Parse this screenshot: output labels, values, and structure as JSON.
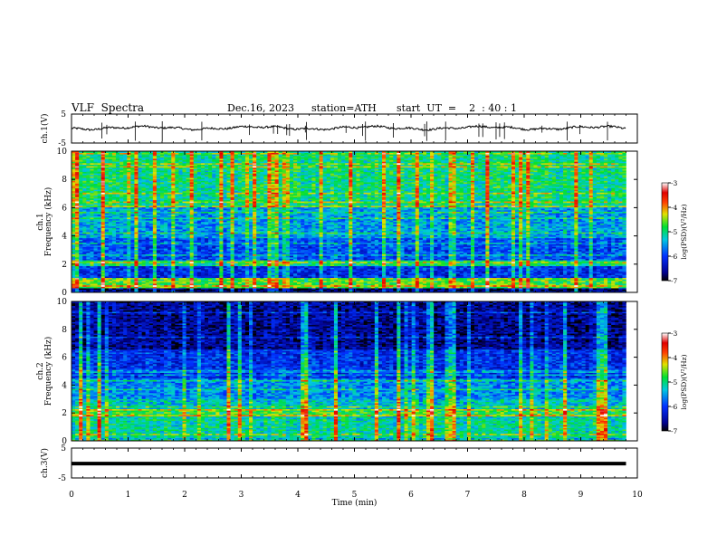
{
  "header": {
    "title": "VLF  Spectra",
    "date": "Dec.16, 2023",
    "station": "station=ATH",
    "start": "start  UT  =    2  : 40 : 1"
  },
  "chart_data": [
    {
      "type": "line",
      "name": "ch1-voltage",
      "ylabel": "ch.1(V)",
      "yticks": [
        "5",
        "-5"
      ],
      "ylim": [
        -5,
        5
      ],
      "xlim": [
        0,
        10
      ],
      "baseline": 0.2,
      "data_end_min": 9.8
    },
    {
      "type": "heatmap",
      "name": "ch1-spectrogram",
      "ylabel": "ch.1\nFrequency  (kHz)",
      "ylim": [
        0,
        10
      ],
      "yticks": [
        "0",
        "2",
        "4",
        "6",
        "8",
        "10"
      ],
      "xlim": [
        0,
        10
      ],
      "data_end_min": 9.8,
      "colorbar": {
        "label": "log(PSD)(V²/Hz)",
        "ticks": [
          "-3",
          "-4",
          "-5",
          "-6",
          "-7"
        ],
        "range": [
          -7,
          -3
        ]
      },
      "bands": [
        {
          "from": 0.0,
          "to": 0.3,
          "level": -6.8
        },
        {
          "from": 0.3,
          "to": 1.0,
          "level": -4.7
        },
        {
          "from": 1.0,
          "to": 1.9,
          "level": -6.1
        },
        {
          "from": 1.9,
          "to": 2.3,
          "level": -5.0
        },
        {
          "from": 2.3,
          "to": 4.0,
          "level": -5.9
        },
        {
          "from": 4.0,
          "to": 6.0,
          "level": -5.5
        },
        {
          "from": 6.0,
          "to": 10.0,
          "level": -5.0
        }
      ]
    },
    {
      "type": "heatmap",
      "name": "ch2-spectrogram",
      "ylabel": "ch.2\nFrequency  (kHz)",
      "ylim": [
        0,
        10
      ],
      "yticks": [
        "0",
        "2",
        "4",
        "6",
        "8",
        "10"
      ],
      "xlim": [
        0,
        10
      ],
      "data_end_min": 9.8,
      "colorbar": {
        "label": "log(PSD)(V²/Hz)",
        "ticks": [
          "-3",
          "-4",
          "-5",
          "-6",
          "-7"
        ],
        "range": [
          -7,
          -3
        ]
      },
      "bands": [
        {
          "from": 0.0,
          "to": 0.2,
          "level": -5.4
        },
        {
          "from": 0.2,
          "to": 1.6,
          "level": -5.1
        },
        {
          "from": 1.6,
          "to": 1.8,
          "level": -5.7
        },
        {
          "from": 1.8,
          "to": 2.3,
          "level": -4.8
        },
        {
          "from": 2.3,
          "to": 3.0,
          "level": -5.3
        },
        {
          "from": 3.0,
          "to": 4.5,
          "level": -5.6
        },
        {
          "from": 4.5,
          "to": 6.5,
          "level": -6.1
        },
        {
          "from": 6.5,
          "to": 10.0,
          "level": -6.6
        }
      ]
    },
    {
      "type": "line",
      "name": "ch3-voltage",
      "ylabel": "ch.3(V)",
      "yticks": [
        "5",
        "-5"
      ],
      "ylim": [
        -5,
        5
      ],
      "xlim": [
        0,
        10
      ],
      "xticks": [
        "0",
        "1",
        "2",
        "3",
        "4",
        "5",
        "6",
        "7",
        "8",
        "9",
        "10"
      ],
      "xlabel": "Time  (min)",
      "baseline": -0.2,
      "data_end_min": 9.8
    }
  ]
}
